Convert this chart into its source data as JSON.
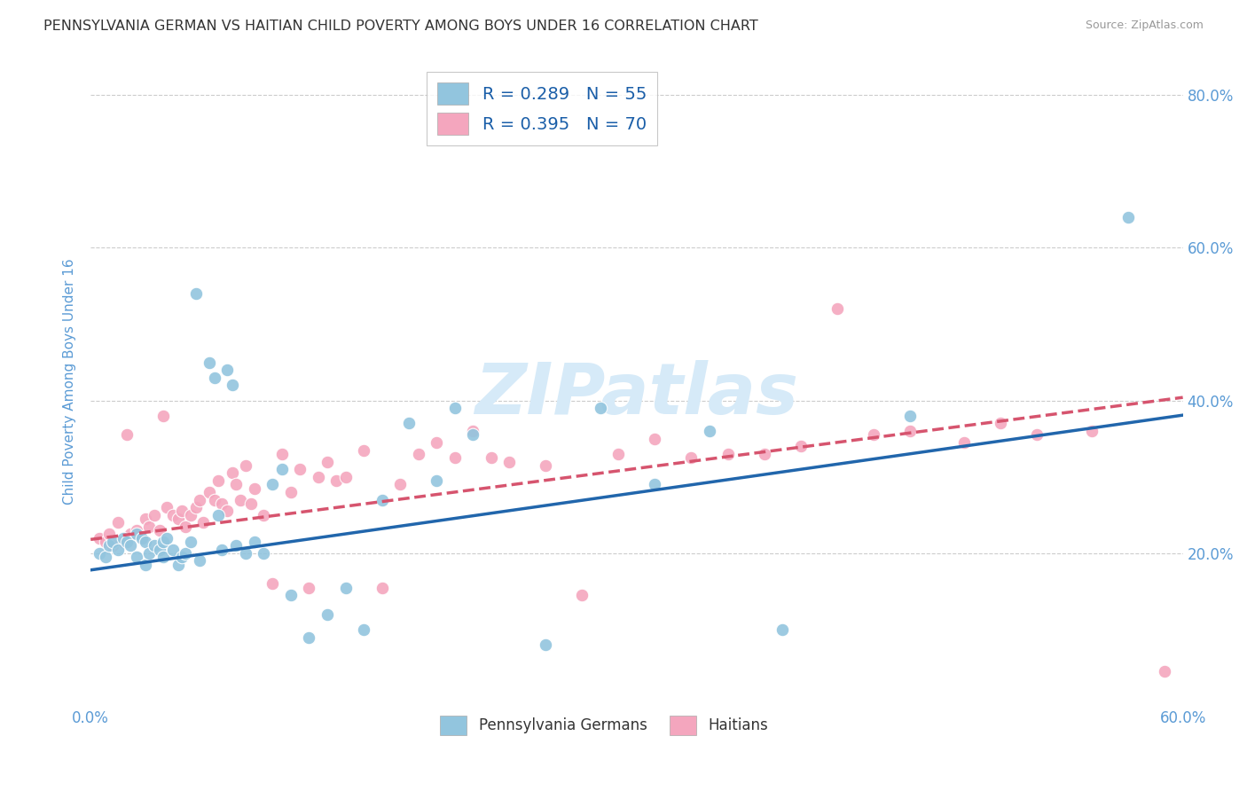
{
  "title": "PENNSYLVANIA GERMAN VS HAITIAN CHILD POVERTY AMONG BOYS UNDER 16 CORRELATION CHART",
  "source": "Source: ZipAtlas.com",
  "ylabel": "Child Poverty Among Boys Under 16",
  "xlim": [
    0.0,
    0.6
  ],
  "ylim": [
    0.0,
    0.85
  ],
  "xticks": [
    0.0,
    0.1,
    0.2,
    0.3,
    0.4,
    0.5,
    0.6
  ],
  "xticklabels": [
    "0.0%",
    "",
    "",
    "",
    "",
    "",
    "60.0%"
  ],
  "ytick_positions": [
    0.2,
    0.4,
    0.6,
    0.8
  ],
  "ytick_labels": [
    "20.0%",
    "40.0%",
    "60.0%",
    "80.0%"
  ],
  "legend_r1": "R = 0.289",
  "legend_n1": "N = 55",
  "legend_r2": "R = 0.395",
  "legend_n2": "N = 70",
  "color_blue": "#92c5de",
  "color_pink": "#f4a6be",
  "line_blue": "#2166ac",
  "line_pink": "#d6546e",
  "title_color": "#333333",
  "source_color": "#999999",
  "axis_label_color": "#5b9bd5",
  "tick_label_color": "#5b9bd5",
  "grid_color": "#cccccc",
  "watermark_color": "#d6eaf8",
  "blue_intercept": 0.178,
  "blue_slope": 0.338,
  "pink_intercept": 0.218,
  "pink_slope": 0.31,
  "blue_x": [
    0.005,
    0.008,
    0.01,
    0.012,
    0.015,
    0.018,
    0.02,
    0.022,
    0.025,
    0.025,
    0.028,
    0.03,
    0.03,
    0.032,
    0.035,
    0.038,
    0.04,
    0.04,
    0.042,
    0.045,
    0.048,
    0.05,
    0.052,
    0.055,
    0.058,
    0.06,
    0.065,
    0.068,
    0.07,
    0.072,
    0.075,
    0.078,
    0.08,
    0.085,
    0.09,
    0.095,
    0.1,
    0.105,
    0.11,
    0.12,
    0.13,
    0.14,
    0.15,
    0.16,
    0.175,
    0.19,
    0.2,
    0.21,
    0.25,
    0.28,
    0.31,
    0.34,
    0.38,
    0.45,
    0.57
  ],
  "blue_y": [
    0.2,
    0.195,
    0.21,
    0.215,
    0.205,
    0.22,
    0.215,
    0.21,
    0.195,
    0.225,
    0.22,
    0.215,
    0.185,
    0.2,
    0.21,
    0.205,
    0.195,
    0.215,
    0.22,
    0.205,
    0.185,
    0.195,
    0.2,
    0.215,
    0.54,
    0.19,
    0.45,
    0.43,
    0.25,
    0.205,
    0.44,
    0.42,
    0.21,
    0.2,
    0.215,
    0.2,
    0.29,
    0.31,
    0.145,
    0.09,
    0.12,
    0.155,
    0.1,
    0.27,
    0.37,
    0.295,
    0.39,
    0.355,
    0.08,
    0.39,
    0.29,
    0.36,
    0.1,
    0.38,
    0.64
  ],
  "pink_x": [
    0.005,
    0.008,
    0.01,
    0.012,
    0.015,
    0.018,
    0.02,
    0.022,
    0.025,
    0.028,
    0.03,
    0.032,
    0.035,
    0.038,
    0.04,
    0.042,
    0.045,
    0.048,
    0.05,
    0.052,
    0.055,
    0.058,
    0.06,
    0.062,
    0.065,
    0.068,
    0.07,
    0.072,
    0.075,
    0.078,
    0.08,
    0.082,
    0.085,
    0.088,
    0.09,
    0.095,
    0.1,
    0.105,
    0.11,
    0.115,
    0.12,
    0.125,
    0.13,
    0.135,
    0.14,
    0.15,
    0.16,
    0.17,
    0.18,
    0.19,
    0.2,
    0.21,
    0.22,
    0.23,
    0.25,
    0.27,
    0.29,
    0.31,
    0.33,
    0.35,
    0.37,
    0.39,
    0.41,
    0.43,
    0.45,
    0.48,
    0.5,
    0.52,
    0.55,
    0.59
  ],
  "pink_y": [
    0.22,
    0.215,
    0.225,
    0.21,
    0.24,
    0.215,
    0.355,
    0.225,
    0.23,
    0.22,
    0.245,
    0.235,
    0.25,
    0.23,
    0.38,
    0.26,
    0.25,
    0.245,
    0.255,
    0.235,
    0.25,
    0.26,
    0.27,
    0.24,
    0.28,
    0.27,
    0.295,
    0.265,
    0.255,
    0.305,
    0.29,
    0.27,
    0.315,
    0.265,
    0.285,
    0.25,
    0.16,
    0.33,
    0.28,
    0.31,
    0.155,
    0.3,
    0.32,
    0.295,
    0.3,
    0.335,
    0.155,
    0.29,
    0.33,
    0.345,
    0.325,
    0.36,
    0.325,
    0.32,
    0.315,
    0.145,
    0.33,
    0.35,
    0.325,
    0.33,
    0.33,
    0.34,
    0.52,
    0.355,
    0.36,
    0.345,
    0.37,
    0.355,
    0.36,
    0.045
  ]
}
